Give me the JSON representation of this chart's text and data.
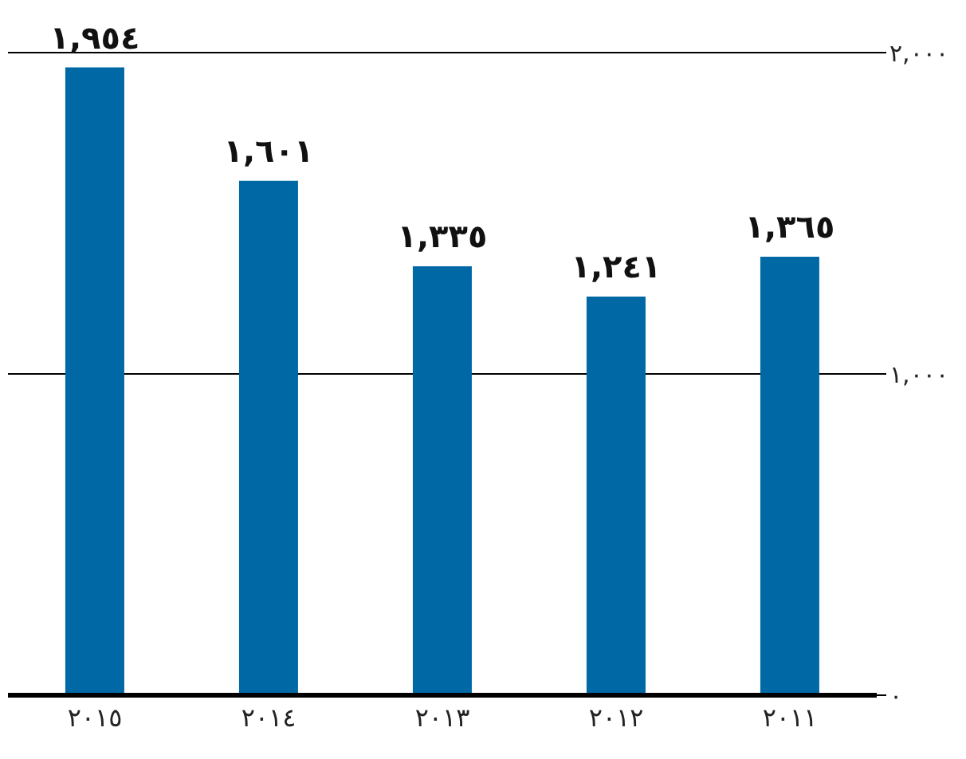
{
  "chart_data": {
    "type": "bar",
    "categories": [
      "٢٠١٥",
      "٢٠١٤",
      "٢٠١٣",
      "٢٠١٢",
      "٢٠١١"
    ],
    "values": [
      1954,
      1601,
      1335,
      1241,
      1365
    ],
    "value_labels": [
      "١,٩٥٤",
      "١,٦٠١",
      "١,٣٣٥",
      "١,٢٤١",
      "١,٣٦٥"
    ],
    "color": "#0068a5",
    "ylim": [
      0,
      2000
    ],
    "yticks": [
      {
        "value": 0,
        "label": "٠"
      },
      {
        "value": 1000,
        "label": "١,٠٠٠"
      },
      {
        "value": 2000,
        "label": "٢,٠٠٠"
      }
    ],
    "grid": "y"
  }
}
